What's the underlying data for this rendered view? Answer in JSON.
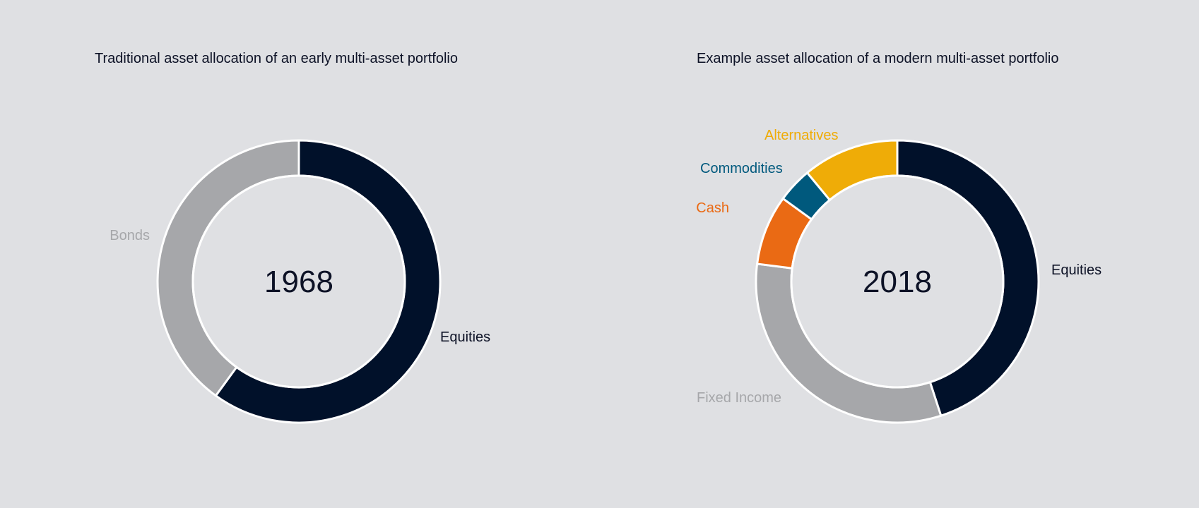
{
  "chart_data": [
    {
      "type": "pie",
      "title": "Traditional asset allocation of an early multi-asset portfolio",
      "center_label": "1968",
      "slices": [
        {
          "label": "Equities",
          "value": 60,
          "color": "#01112a",
          "label_color": "#0d1226"
        },
        {
          "label": "Bonds",
          "value": 40,
          "color": "#a6a7aa",
          "label_color": "#a6a7aa"
        }
      ]
    },
    {
      "type": "pie",
      "title": "Example asset allocation of a modern multi-asset portfolio",
      "center_label": "2018",
      "slices": [
        {
          "label": "Equities",
          "value": 45,
          "color": "#01112a",
          "label_color": "#0d1226"
        },
        {
          "label": "Fixed Income",
          "value": 32,
          "color": "#a6a7aa",
          "label_color": "#a6a7aa"
        },
        {
          "label": "Cash",
          "value": 8,
          "color": "#ea6a14",
          "label_color": "#ea6a14"
        },
        {
          "label": "Commodities",
          "value": 4,
          "color": "#00597d",
          "label_color": "#00597d"
        },
        {
          "label": "Alternatives",
          "value": 11,
          "color": "#efac07",
          "label_color": "#efac07"
        }
      ]
    }
  ]
}
